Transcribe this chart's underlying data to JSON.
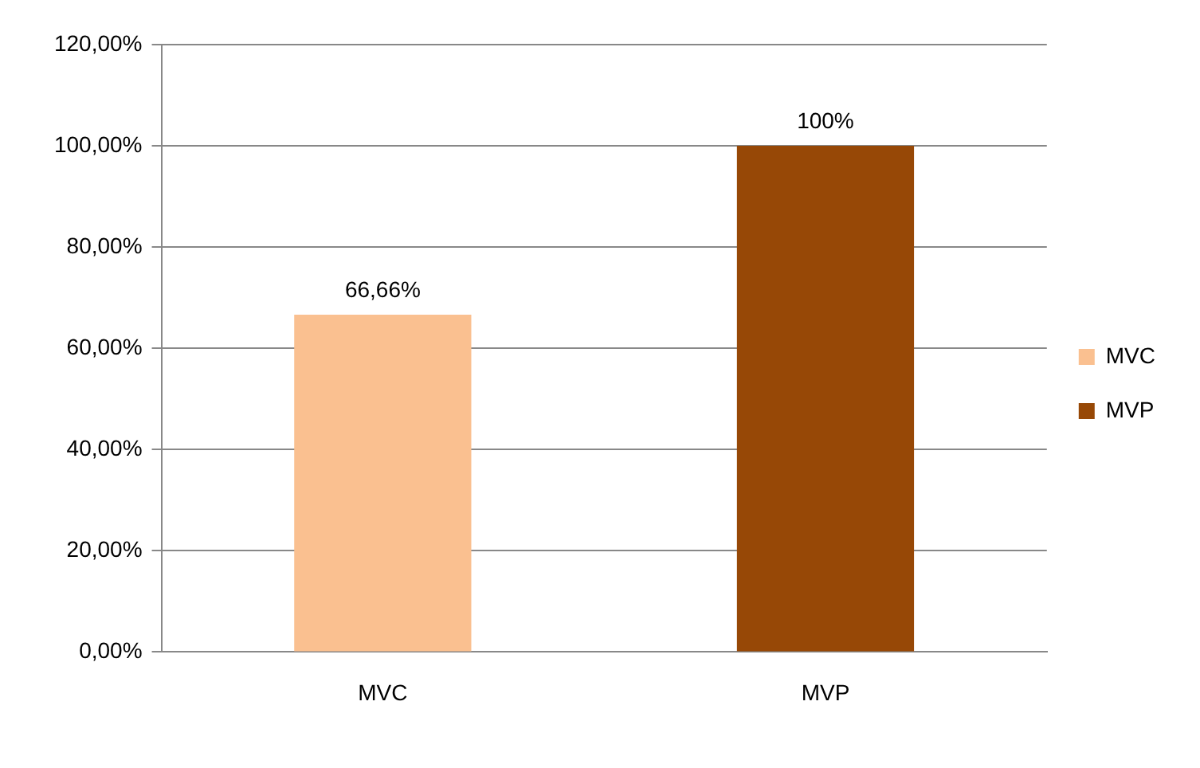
{
  "chart_data": {
    "type": "bar",
    "categories": [
      "MVC",
      "MVP"
    ],
    "series": [
      {
        "name": "MVC",
        "color": "#fac090",
        "values": [
          66.66,
          null
        ],
        "value_labels": [
          "66,66%",
          null
        ]
      },
      {
        "name": "MVP",
        "color": "#974806",
        "values": [
          null,
          100
        ],
        "value_labels": [
          null,
          "100%"
        ]
      }
    ],
    "ylim": [
      0,
      120
    ],
    "yticks": [
      {
        "value": 0,
        "label": "0,00%"
      },
      {
        "value": 20,
        "label": "20,00%"
      },
      {
        "value": 40,
        "label": "40,00%"
      },
      {
        "value": 60,
        "label": "60,00%"
      },
      {
        "value": 80,
        "label": "80,00%"
      },
      {
        "value": 100,
        "label": "100,00%"
      },
      {
        "value": 120,
        "label": "120,00%"
      }
    ],
    "grid": "y",
    "legend": "right"
  }
}
